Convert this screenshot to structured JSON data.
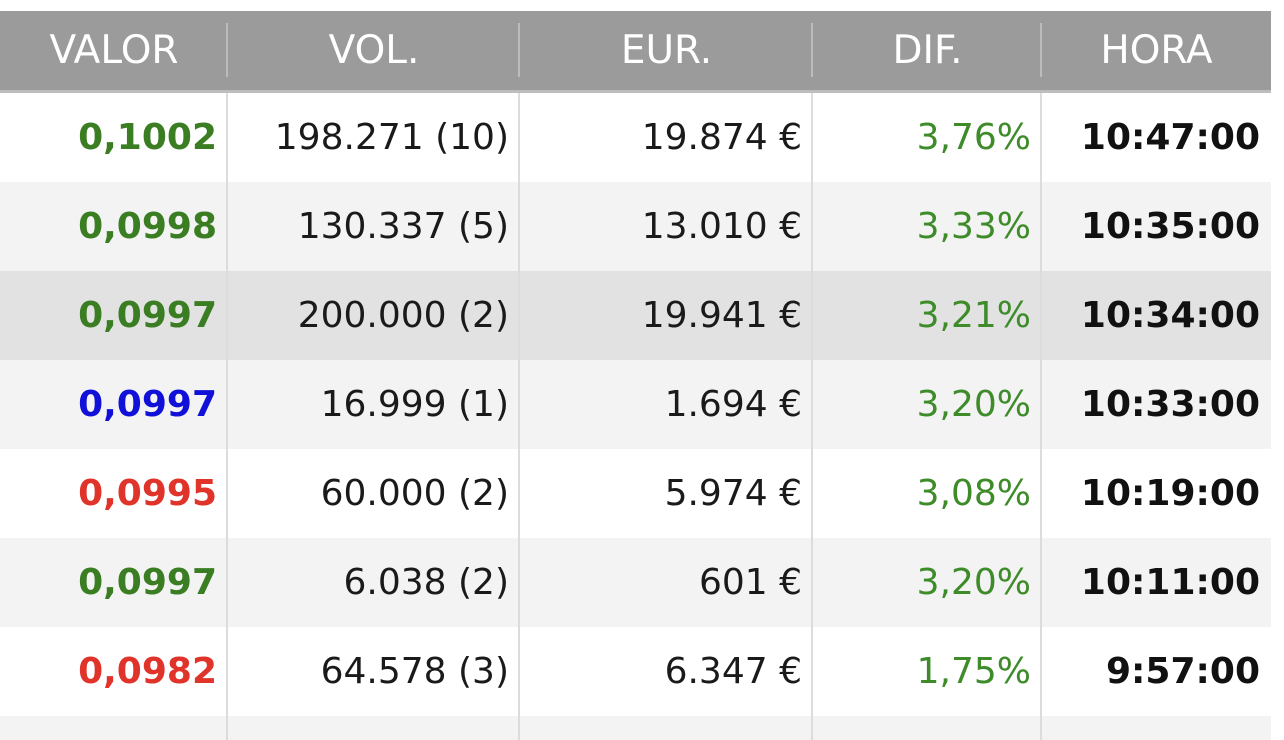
{
  "header": {
    "valor": "VALOR",
    "vol": "VOL.",
    "eur": "EUR.",
    "dif": "DIF.",
    "hora": "HORA"
  },
  "colors": {
    "up": "#3a7d22",
    "neutral": "#1010d8",
    "down": "#e0332a",
    "dif_positive": "#3e8b2a"
  },
  "rows": [
    {
      "valor": "0,1002",
      "valor_color": "up",
      "vol": "198.271 (10)",
      "eur": "19.874 €",
      "dif": "3,76%",
      "hora": "10:47:00"
    },
    {
      "valor": "0,0998",
      "valor_color": "up",
      "vol": "130.337 (5)",
      "eur": "13.010 €",
      "dif": "3,33%",
      "hora": "10:35:00"
    },
    {
      "valor": "0,0997",
      "valor_color": "up",
      "vol": "200.000 (2)",
      "eur": "19.941 €",
      "dif": "3,21%",
      "hora": "10:34:00"
    },
    {
      "valor": "0,0997",
      "valor_color": "neutral",
      "vol": "16.999 (1)",
      "eur": "1.694 €",
      "dif": "3,20%",
      "hora": "10:33:00"
    },
    {
      "valor": "0,0995",
      "valor_color": "down",
      "vol": "60.000 (2)",
      "eur": "5.974 €",
      "dif": "3,08%",
      "hora": "10:19:00"
    },
    {
      "valor": "0,0997",
      "valor_color": "up",
      "vol": "6.038 (2)",
      "eur": "601 €",
      "dif": "3,20%",
      "hora": "10:11:00"
    },
    {
      "valor": "0,0982",
      "valor_color": "down",
      "vol": "64.578 (3)",
      "eur": "6.347 €",
      "dif": "1,75%",
      "hora": "9:57:00"
    }
  ]
}
